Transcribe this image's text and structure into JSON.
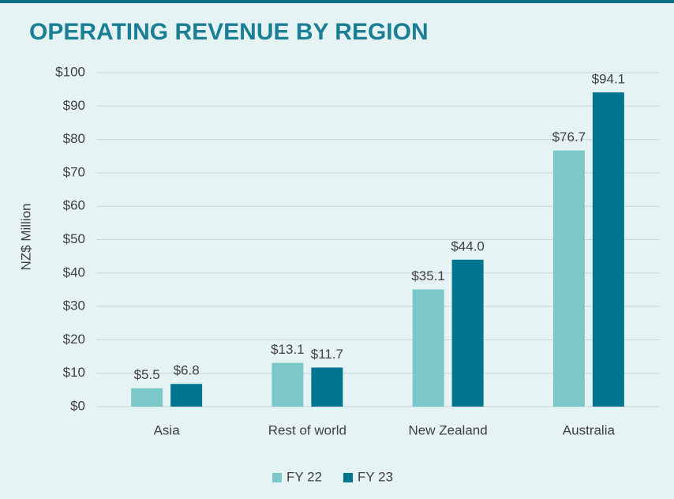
{
  "chart_data": {
    "type": "bar",
    "title": "OPERATING REVENUE BY REGION",
    "y_label": "NZ$ Million",
    "categories": [
      "Asia",
      "Rest of world",
      "New Zealand",
      "Australia"
    ],
    "series": [
      {
        "name": "FY 22",
        "color": "#7cc8c9",
        "values": [
          5.5,
          13.1,
          35.1,
          76.7
        ],
        "value_labels": [
          "$5.5",
          "$13.1",
          "$35.1",
          "$76.7"
        ]
      },
      {
        "name": "FY 23",
        "color": "#00758f",
        "values": [
          6.8,
          11.7,
          44.0,
          94.1
        ],
        "value_labels": [
          "$6.8",
          "$11.7",
          "$44.0",
          "$94.1"
        ]
      }
    ],
    "ylim": [
      0,
      100
    ],
    "yticks": [
      {
        "value": 0,
        "label": "$0"
      },
      {
        "value": 10,
        "label": "$10"
      },
      {
        "value": 20,
        "label": "$20"
      },
      {
        "value": 30,
        "label": "$30"
      },
      {
        "value": 40,
        "label": "$40"
      },
      {
        "value": 50,
        "label": "$50"
      },
      {
        "value": 60,
        "label": "$60"
      },
      {
        "value": 70,
        "label": "$70"
      },
      {
        "value": 80,
        "label": "$80"
      },
      {
        "value": 90,
        "label": "$90"
      },
      {
        "value": 100,
        "label": "$100"
      }
    ],
    "grid": true,
    "legend": "bottom"
  }
}
